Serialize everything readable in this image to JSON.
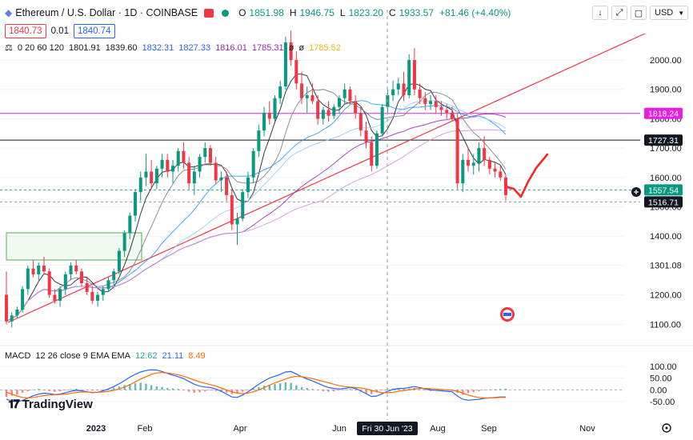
{
  "header": {
    "symbol": "Ethereum / U.S. Dollar · 1D · COINBASE",
    "o_label": "O",
    "o_value": "1851.98",
    "h_label": "H",
    "h_value": "1946.75",
    "l_label": "L",
    "l_value": "1823.20",
    "c_label": "C",
    "c_value": "1933.57",
    "change": "+81.46 (+4.40%)"
  },
  "prices": {
    "sell": "1840.73",
    "spread": "0.01",
    "buy": "1840.74"
  },
  "indicators": {
    "label": "0 20 60 120",
    "values": [
      {
        "text": "1801.91",
        "color": "#131722"
      },
      {
        "text": "1839.60",
        "color": "#131722"
      },
      {
        "text": "1832.31",
        "color": "#2962ff"
      },
      {
        "text": "1827.33",
        "color": "#2962ff"
      },
      {
        "text": "1816.01",
        "color": "#9c27b0"
      },
      {
        "text": "1785.31",
        "color": "#9c27b0"
      },
      {
        "text": "ø",
        "color": "#131722"
      },
      {
        "text": "ø",
        "color": "#131722"
      },
      {
        "text": "1785.52",
        "color": "#f0b90b"
      }
    ]
  },
  "toolbar": {
    "currency": "USD",
    "btn_down": "↓",
    "btn_expand": "⤢",
    "btn_window": "▢"
  },
  "macd": {
    "label": "MACD",
    "params": "12 26 close 9 EMA EMA",
    "v1": "12.62",
    "v2": "21.11",
    "v3": "8.49",
    "ticks": [
      "100.00",
      "50.00",
      "0.00",
      "-50.00"
    ]
  },
  "logo": "TradingView",
  "chart_data": {
    "type": "candlestick",
    "ylim": [
      1060,
      2090
    ],
    "yticks": [
      "2000.00",
      "1900.00",
      "1800.00",
      "1700.00",
      "1600.00",
      "1500.00",
      "1400.00",
      "1301.08",
      "1200.00",
      "1100.00"
    ],
    "ytick_values": [
      2000,
      1900,
      1800,
      1700,
      1600,
      1500,
      1400,
      1301.08,
      1200,
      1100
    ],
    "xticks": [
      "2023",
      "Feb",
      "Apr",
      "Jun",
      "Aug",
      "Sep",
      "Nov"
    ],
    "crosshair_date": "Fri 30 Jun '23",
    "price_labels": [
      {
        "text": "1818.24",
        "value": 1818.24,
        "color": "#e91ee1"
      },
      {
        "text": "1727.31",
        "value": 1727.31,
        "color": "#131722"
      },
      {
        "text": "1557.54",
        "value": 1557.54,
        "color": "#089981"
      },
      {
        "text": "1516.71",
        "value": 1516.71,
        "color": "#131722"
      }
    ],
    "horizontal_lines": [
      {
        "value": 1818.24,
        "color": "#e91ee1"
      },
      {
        "value": 1727.31,
        "color": "#131722"
      },
      {
        "value": 1557.54,
        "color": "#26a69a",
        "dashed": true
      },
      {
        "value": 1516.71,
        "color": "#9598a1",
        "dashed": true
      }
    ],
    "candles": [
      [
        1200,
        1280,
        1100,
        1110
      ],
      [
        1110,
        1140,
        1090,
        1130
      ],
      [
        1130,
        1160,
        1120,
        1150
      ],
      [
        1150,
        1230,
        1140,
        1220
      ],
      [
        1220,
        1300,
        1200,
        1290
      ],
      [
        1290,
        1320,
        1260,
        1270
      ],
      [
        1270,
        1310,
        1250,
        1300
      ],
      [
        1300,
        1330,
        1270,
        1280
      ],
      [
        1280,
        1290,
        1190,
        1200
      ],
      [
        1200,
        1220,
        1170,
        1180
      ],
      [
        1180,
        1230,
        1160,
        1220
      ],
      [
        1220,
        1280,
        1200,
        1270
      ],
      [
        1270,
        1310,
        1250,
        1300
      ],
      [
        1300,
        1320,
        1270,
        1280
      ],
      [
        1280,
        1290,
        1230,
        1240
      ],
      [
        1240,
        1260,
        1200,
        1210
      ],
      [
        1210,
        1230,
        1170,
        1180
      ],
      [
        1180,
        1210,
        1160,
        1200
      ],
      [
        1200,
        1230,
        1180,
        1220
      ],
      [
        1220,
        1260,
        1210,
        1250
      ],
      [
        1250,
        1290,
        1230,
        1280
      ],
      [
        1280,
        1360,
        1270,
        1350
      ],
      [
        1350,
        1420,
        1330,
        1410
      ],
      [
        1410,
        1480,
        1390,
        1470
      ],
      [
        1470,
        1560,
        1450,
        1550
      ],
      [
        1550,
        1620,
        1520,
        1600
      ],
      [
        1600,
        1680,
        1570,
        1620
      ],
      [
        1620,
        1660,
        1560,
        1580
      ],
      [
        1580,
        1640,
        1560,
        1630
      ],
      [
        1630,
        1680,
        1600,
        1660
      ],
      [
        1660,
        1680,
        1600,
        1620
      ],
      [
        1620,
        1660,
        1580,
        1640
      ],
      [
        1640,
        1700,
        1620,
        1690
      ],
      [
        1690,
        1720,
        1630,
        1650
      ],
      [
        1650,
        1670,
        1560,
        1580
      ],
      [
        1580,
        1640,
        1540,
        1620
      ],
      [
        1620,
        1680,
        1600,
        1670
      ],
      [
        1670,
        1720,
        1650,
        1700
      ],
      [
        1700,
        1710,
        1640,
        1650
      ],
      [
        1650,
        1670,
        1580,
        1590
      ],
      [
        1590,
        1620,
        1550,
        1600
      ],
      [
        1600,
        1620,
        1520,
        1540
      ],
      [
        1540,
        1560,
        1420,
        1440
      ],
      [
        1440,
        1480,
        1370,
        1460
      ],
      [
        1460,
        1560,
        1450,
        1550
      ],
      [
        1550,
        1620,
        1530,
        1600
      ],
      [
        1600,
        1700,
        1580,
        1690
      ],
      [
        1690,
        1780,
        1670,
        1760
      ],
      [
        1760,
        1840,
        1740,
        1820
      ],
      [
        1820,
        1860,
        1780,
        1800
      ],
      [
        1800,
        1880,
        1790,
        1870
      ],
      [
        1870,
        1930,
        1850,
        1910
      ],
      [
        1910,
        2080,
        1900,
        2060
      ],
      [
        2060,
        2100,
        1980,
        2000
      ],
      [
        2000,
        2030,
        1900,
        1920
      ],
      [
        1920,
        1960,
        1850,
        1870
      ],
      [
        1870,
        1910,
        1820,
        1880
      ],
      [
        1880,
        1920,
        1850,
        1860
      ],
      [
        1860,
        1880,
        1780,
        1800
      ],
      [
        1800,
        1840,
        1780,
        1830
      ],
      [
        1830,
        1860,
        1790,
        1810
      ],
      [
        1810,
        1850,
        1800,
        1840
      ],
      [
        1840,
        1880,
        1820,
        1870
      ],
      [
        1870,
        1920,
        1850,
        1900
      ],
      [
        1900,
        1910,
        1850,
        1860
      ],
      [
        1860,
        1880,
        1800,
        1820
      ],
      [
        1820,
        1840,
        1740,
        1760
      ],
      [
        1760,
        1790,
        1700,
        1720
      ],
      [
        1720,
        1740,
        1620,
        1640
      ],
      [
        1640,
        1760,
        1630,
        1750
      ],
      [
        1750,
        1850,
        1740,
        1840
      ],
      [
        1840,
        1900,
        1820,
        1880
      ],
      [
        1880,
        1930,
        1860,
        1900
      ],
      [
        1900,
        1940,
        1880,
        1920
      ],
      [
        1920,
        1960,
        1860,
        1880
      ],
      [
        1880,
        2020,
        1870,
        2000
      ],
      [
        2000,
        2040,
        1880,
        1900
      ],
      [
        1900,
        1920,
        1850,
        1870
      ],
      [
        1870,
        1890,
        1830,
        1850
      ],
      [
        1850,
        1880,
        1830,
        1860
      ],
      [
        1860,
        1880,
        1820,
        1840
      ],
      [
        1840,
        1860,
        1810,
        1830
      ],
      [
        1830,
        1850,
        1800,
        1820
      ],
      [
        1820,
        1840,
        1790,
        1800
      ],
      [
        1800,
        1820,
        1560,
        1580
      ],
      [
        1580,
        1680,
        1550,
        1660
      ],
      [
        1660,
        1700,
        1620,
        1640
      ],
      [
        1640,
        1680,
        1610,
        1650
      ],
      [
        1650,
        1720,
        1620,
        1700
      ],
      [
        1700,
        1740,
        1640,
        1660
      ],
      [
        1660,
        1670,
        1610,
        1630
      ],
      [
        1630,
        1650,
        1600,
        1620
      ],
      [
        1620,
        1640,
        1590,
        1600
      ],
      [
        1600,
        1610,
        1520,
        1540
      ]
    ],
    "macd_hist": [
      -30,
      -25,
      -20,
      -12,
      -6,
      2,
      4,
      1,
      -5,
      -8,
      -6,
      -2,
      3,
      5,
      2,
      -1,
      -3,
      -2,
      1,
      5,
      9,
      14,
      20,
      25,
      28,
      30,
      26,
      20,
      15,
      12,
      8,
      6,
      4,
      -2,
      -8,
      -12,
      -10,
      -6,
      -3,
      -5,
      -8,
      -12,
      -18,
      -15,
      -8,
      -2,
      6,
      12,
      18,
      22,
      25,
      28,
      32,
      30,
      20,
      12,
      8,
      4,
      -2,
      -6,
      -8,
      -6,
      -3,
      1,
      4,
      -2,
      -8,
      -14,
      -18,
      -10,
      -2,
      4,
      6,
      5,
      3,
      6,
      8,
      2,
      -3,
      -5,
      -4,
      -3,
      -2,
      -1,
      -12,
      -20,
      -14,
      -10,
      -6,
      -2,
      2,
      3,
      4,
      5
    ],
    "macd_line": [
      -40,
      -48,
      -50,
      -45,
      -35,
      -25,
      -18,
      -14,
      -16,
      -20,
      -18,
      -12,
      -6,
      -2,
      -4,
      -8,
      -12,
      -10,
      -4,
      4,
      14,
      26,
      40,
      54,
      66,
      76,
      82,
      86,
      84,
      78,
      70,
      62,
      56,
      48,
      36,
      24,
      16,
      12,
      10,
      4,
      -6,
      -18,
      -30,
      -32,
      -22,
      -8,
      8,
      24,
      38,
      50,
      58,
      66,
      76,
      78,
      68,
      56,
      46,
      38,
      28,
      18,
      10,
      6,
      4,
      6,
      10,
      6,
      -4,
      -16,
      -28,
      -26,
      -16,
      -6,
      2,
      6,
      6,
      10,
      14,
      10,
      4,
      0,
      -2,
      -4,
      -6,
      -8,
      -26,
      -40,
      -44,
      -42,
      -40,
      -36,
      -34,
      -32,
      -30,
      -30
    ],
    "signal_line": [
      -10,
      -18,
      -26,
      -32,
      -34,
      -32,
      -28,
      -24,
      -22,
      -21,
      -20,
      -18,
      -15,
      -11,
      -9,
      -9,
      -10,
      -10,
      -9,
      -6,
      -2,
      4,
      12,
      22,
      34,
      46,
      56,
      66,
      72,
      74,
      72,
      68,
      64,
      58,
      50,
      42,
      34,
      28,
      22,
      16,
      8,
      0,
      -8,
      -14,
      -16,
      -14,
      -8,
      0,
      10,
      20,
      30,
      38,
      46,
      54,
      58,
      56,
      52,
      48,
      42,
      36,
      30,
      24,
      18,
      14,
      12,
      10,
      8,
      4,
      -2,
      -8,
      -12,
      -12,
      -10,
      -6,
      -3,
      0,
      4,
      6,
      6,
      5,
      4,
      2,
      0,
      -2,
      -6,
      -14,
      -22,
      -28,
      -32,
      -34,
      -34,
      -33,
      -32,
      -32
    ]
  }
}
